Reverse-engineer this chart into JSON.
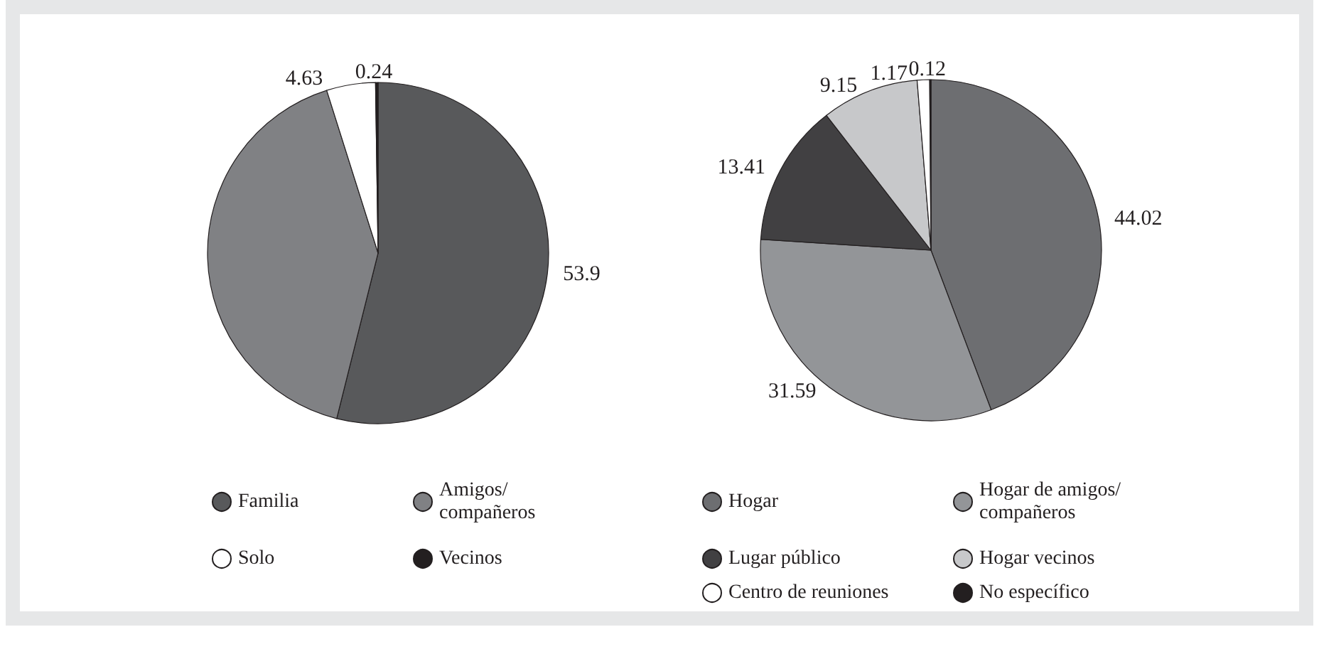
{
  "chart_data": [
    {
      "type": "pie",
      "categories": [
        "Familia",
        "Amigos/ compañeros",
        "Solo",
        "Vecinos"
      ],
      "values": [
        53.9,
        41.23,
        4.63,
        0.24
      ],
      "colors": [
        "#58595b",
        "#808184",
        "#ffffff",
        "#231f20"
      ],
      "value_labels": [
        "53.9",
        null,
        "4.63",
        "0.24"
      ],
      "legend": "bottom"
    },
    {
      "type": "pie",
      "categories": [
        "Hogar",
        "Hogar de amigos/ compañeros",
        "Lugar público",
        "Hogar vecinos",
        "Centro de reuniones",
        "No específico"
      ],
      "values": [
        44.02,
        31.59,
        13.41,
        9.15,
        1.17,
        0.12
      ],
      "colors": [
        "#6d6e71",
        "#939598",
        "#414042",
        "#c7c8ca",
        "#ffffff",
        "#231f20"
      ],
      "value_labels": [
        "44.02",
        "31.59",
        "13.41",
        "9.15",
        "1.17",
        "0.12"
      ],
      "legend": "bottom"
    }
  ]
}
